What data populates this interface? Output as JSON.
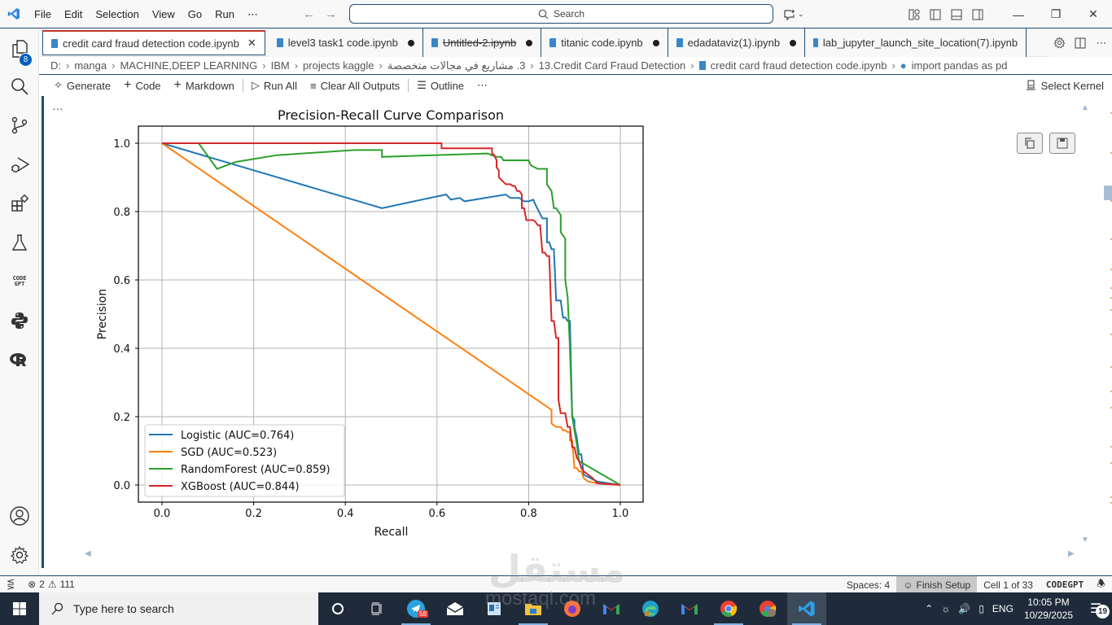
{
  "titlebar": {
    "menu": [
      "File",
      "Edit",
      "Selection",
      "View",
      "Go",
      "Run",
      "⋯"
    ],
    "search_placeholder": "Search"
  },
  "activitybar": {
    "explorer_badge": "8",
    "items": [
      "explorer",
      "search",
      "source-control",
      "run-debug",
      "extensions",
      "testing",
      "codegpt",
      "python",
      "r"
    ],
    "codegpt_label_top": "CODE",
    "codegpt_label_bottom": "GPT"
  },
  "tabs": [
    {
      "label": "credit card fraud detection code.ipynb",
      "active": true,
      "modified": false,
      "deleted": false
    },
    {
      "label": "level3 task1 code.ipynb",
      "active": false,
      "modified": true,
      "deleted": false
    },
    {
      "label": "Untitled-2.ipynb",
      "active": false,
      "modified": true,
      "deleted": true
    },
    {
      "label": "titanic code.ipynb",
      "active": false,
      "modified": true,
      "deleted": false
    },
    {
      "label": "edadataviz(1).ipynb",
      "active": false,
      "modified": true,
      "deleted": false
    },
    {
      "label": "lab_jupyter_launch_site_location(7).ipynb",
      "active": false,
      "modified": false,
      "deleted": false
    }
  ],
  "breadcrumb": [
    "D:",
    "manga",
    "MACHINE,DEEP LEARNING",
    "IBM",
    "projects kaggle",
    "3. مشاريع في مجالات متخصصة",
    "13.Credit Card Fraud Detection",
    "credit card fraud detection  code.ipynb",
    "import pandas as pd"
  ],
  "notebook_toolbar": {
    "generate": "Generate",
    "code": "Code",
    "markdown": "Markdown",
    "run_all": "Run All",
    "clear_outputs": "Clear All Outputs",
    "outline": "Outline",
    "more": "⋯",
    "select_kernel": "Select Kernel"
  },
  "cell": {
    "ellipsis": "…"
  },
  "colors": {
    "accent": "#1f4e79",
    "logistic": "#1f77b4",
    "sgd": "#ff7f0e",
    "randomforest": "#2ca02c",
    "xgboost": "#d62728",
    "grid": "#b0b0b0"
  },
  "chart_data": {
    "type": "line",
    "title": "Precision-Recall Curve Comparison",
    "xlabel": "Recall",
    "ylabel": "Precision",
    "xlim": [
      -0.05,
      1.05
    ],
    "ylim": [
      -0.05,
      1.05
    ],
    "xticks": [
      "0.0",
      "0.2",
      "0.4",
      "0.6",
      "0.8",
      "1.0"
    ],
    "yticks": [
      "0.0",
      "0.2",
      "0.4",
      "0.6",
      "0.8",
      "1.0"
    ],
    "grid": true,
    "legend_position": "lower left",
    "series": [
      {
        "name": "Logistic (AUC=0.764)",
        "color": "#1f77b4",
        "points": [
          [
            0.0,
            1.0
          ],
          [
            0.48,
            0.81
          ],
          [
            0.62,
            0.85
          ],
          [
            0.63,
            0.835
          ],
          [
            0.65,
            0.84
          ],
          [
            0.66,
            0.83
          ],
          [
            0.75,
            0.85
          ],
          [
            0.76,
            0.84
          ],
          [
            0.78,
            0.84
          ],
          [
            0.79,
            0.83
          ],
          [
            0.8,
            0.83
          ],
          [
            0.81,
            0.835
          ],
          [
            0.815,
            0.82
          ],
          [
            0.83,
            0.78
          ],
          [
            0.84,
            0.78
          ],
          [
            0.84,
            0.71
          ],
          [
            0.845,
            0.71
          ],
          [
            0.85,
            0.69
          ],
          [
            0.855,
            0.69
          ],
          [
            0.86,
            0.54
          ],
          [
            0.87,
            0.54
          ],
          [
            0.875,
            0.49
          ],
          [
            0.88,
            0.49
          ],
          [
            0.885,
            0.48
          ],
          [
            0.89,
            0.48
          ],
          [
            0.895,
            0.2
          ],
          [
            0.9,
            0.19
          ],
          [
            0.9,
            0.17
          ],
          [
            0.905,
            0.14
          ],
          [
            0.91,
            0.09
          ],
          [
            0.915,
            0.09
          ],
          [
            0.92,
            0.03
          ],
          [
            0.95,
            0.01
          ],
          [
            1.0,
            0.0
          ]
        ]
      },
      {
        "name": "SGD (AUC=0.523)",
        "color": "#ff7f0e",
        "points": [
          [
            0.0,
            1.0
          ],
          [
            0.85,
            0.22
          ],
          [
            0.85,
            0.18
          ],
          [
            0.86,
            0.17
          ],
          [
            0.87,
            0.17
          ],
          [
            0.875,
            0.16
          ],
          [
            0.88,
            0.16
          ],
          [
            0.885,
            0.155
          ],
          [
            0.89,
            0.155
          ],
          [
            0.89,
            0.13
          ],
          [
            0.895,
            0.13
          ],
          [
            0.9,
            0.05
          ],
          [
            0.905,
            0.05
          ],
          [
            0.91,
            0.04
          ],
          [
            0.915,
            0.04
          ],
          [
            0.92,
            0.02
          ],
          [
            0.93,
            0.01
          ],
          [
            0.95,
            0.005
          ],
          [
            1.0,
            0.0
          ]
        ]
      },
      {
        "name": "RandomForest (AUC=0.859)",
        "color": "#2ca02c",
        "points": [
          [
            0.0,
            1.0
          ],
          [
            0.08,
            1.0
          ],
          [
            0.12,
            0.925
          ],
          [
            0.16,
            0.945
          ],
          [
            0.25,
            0.965
          ],
          [
            0.42,
            0.98
          ],
          [
            0.48,
            0.98
          ],
          [
            0.48,
            0.96
          ],
          [
            0.71,
            0.97
          ],
          [
            0.72,
            0.965
          ],
          [
            0.73,
            0.96
          ],
          [
            0.74,
            0.96
          ],
          [
            0.745,
            0.95
          ],
          [
            0.8,
            0.95
          ],
          [
            0.805,
            0.935
          ],
          [
            0.82,
            0.925
          ],
          [
            0.84,
            0.925
          ],
          [
            0.84,
            0.88
          ],
          [
            0.85,
            0.86
          ],
          [
            0.855,
            0.81
          ],
          [
            0.86,
            0.81
          ],
          [
            0.865,
            0.8
          ],
          [
            0.87,
            0.79
          ],
          [
            0.87,
            0.74
          ],
          [
            0.88,
            0.72
          ],
          [
            0.88,
            0.6
          ],
          [
            0.885,
            0.55
          ],
          [
            0.89,
            0.4
          ],
          [
            0.895,
            0.2
          ],
          [
            0.905,
            0.12
          ],
          [
            0.91,
            0.07
          ],
          [
            1.0,
            0.0
          ]
        ]
      },
      {
        "name": "XGBoost (AUC=0.844)",
        "color": "#d62728",
        "points": [
          [
            0.0,
            1.0
          ],
          [
            0.61,
            1.0
          ],
          [
            0.61,
            0.985
          ],
          [
            0.72,
            0.985
          ],
          [
            0.72,
            0.97
          ],
          [
            0.725,
            0.965
          ],
          [
            0.73,
            0.95
          ],
          [
            0.73,
            0.93
          ],
          [
            0.735,
            0.92
          ],
          [
            0.735,
            0.9
          ],
          [
            0.75,
            0.88
          ],
          [
            0.76,
            0.88
          ],
          [
            0.765,
            0.875
          ],
          [
            0.77,
            0.875
          ],
          [
            0.775,
            0.86
          ],
          [
            0.78,
            0.86
          ],
          [
            0.785,
            0.85
          ],
          [
            0.785,
            0.81
          ],
          [
            0.79,
            0.81
          ],
          [
            0.795,
            0.775
          ],
          [
            0.8,
            0.775
          ],
          [
            0.81,
            0.775
          ],
          [
            0.815,
            0.77
          ],
          [
            0.82,
            0.76
          ],
          [
            0.825,
            0.76
          ],
          [
            0.83,
            0.68
          ],
          [
            0.835,
            0.68
          ],
          [
            0.84,
            0.67
          ],
          [
            0.845,
            0.67
          ],
          [
            0.85,
            0.48
          ],
          [
            0.855,
            0.48
          ],
          [
            0.86,
            0.43
          ],
          [
            0.865,
            0.43
          ],
          [
            0.865,
            0.25
          ],
          [
            0.87,
            0.21
          ],
          [
            0.88,
            0.21
          ],
          [
            0.885,
            0.17
          ],
          [
            0.89,
            0.17
          ],
          [
            0.895,
            0.11
          ],
          [
            0.9,
            0.11
          ],
          [
            0.905,
            0.08
          ],
          [
            0.91,
            0.07
          ],
          [
            0.915,
            0.05
          ],
          [
            0.92,
            0.04
          ],
          [
            0.93,
            0.03
          ],
          [
            0.94,
            0.02
          ],
          [
            0.95,
            0.005
          ],
          [
            1.0,
            0.0
          ]
        ]
      }
    ]
  },
  "statusbar": {
    "errors": "2",
    "warnings": "111",
    "spaces": "Spaces: 4",
    "finish_setup": "Finish Setup",
    "cell_position": "Cell 1 of 33",
    "codegpt": "CODEGPT"
  },
  "taskbar": {
    "search_placeholder": "Type here to search",
    "telegram_badge": "58",
    "tray_lang": "ENG",
    "time": "10:05 PM",
    "date": "10/29/2025",
    "notification_count": "19"
  },
  "watermark": {
    "arabic": "مستقل",
    "latin": "mostaql.com"
  }
}
